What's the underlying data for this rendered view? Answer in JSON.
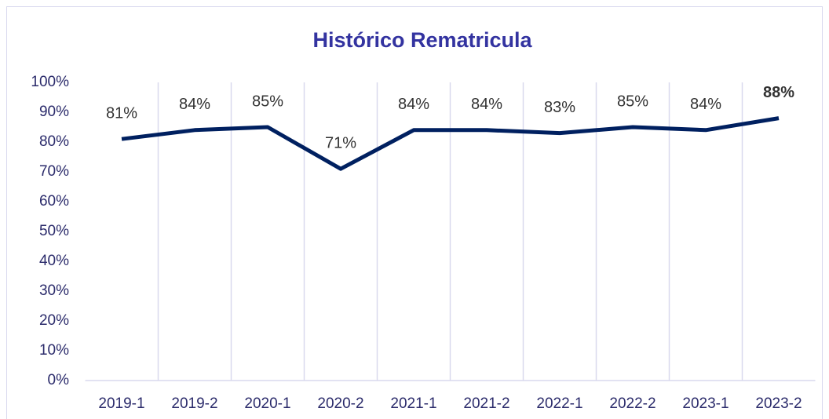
{
  "chart_data": {
    "type": "line",
    "title": "Histórico Rematricula",
    "categories": [
      "2019-1",
      "2019-2",
      "2020-1",
      "2020-2",
      "2021-1",
      "2021-2",
      "2022-1",
      "2022-2",
      "2023-1",
      "2023-2"
    ],
    "series": [
      {
        "name": "Rematricula",
        "color": "#002060",
        "values": [
          81,
          84,
          85,
          71,
          84,
          84,
          83,
          85,
          84,
          88
        ],
        "value_labels": [
          "81%",
          "84%",
          "85%",
          "71%",
          "84%",
          "84%",
          "83%",
          "85%",
          "84%",
          "88%"
        ]
      }
    ],
    "ylim": [
      0,
      100
    ],
    "yticks": [
      {
        "value": 0,
        "label": "0%"
      },
      {
        "value": 10,
        "label": "10%"
      },
      {
        "value": 20,
        "label": "20%"
      },
      {
        "value": 30,
        "label": "30%"
      },
      {
        "value": 40,
        "label": "40%"
      },
      {
        "value": 50,
        "label": "50%"
      },
      {
        "value": 60,
        "label": "60%"
      },
      {
        "value": 70,
        "label": "70%"
      },
      {
        "value": 80,
        "label": "80%"
      },
      {
        "value": 90,
        "label": "90%"
      },
      {
        "value": 100,
        "label": "100%"
      }
    ],
    "grid": false
  }
}
